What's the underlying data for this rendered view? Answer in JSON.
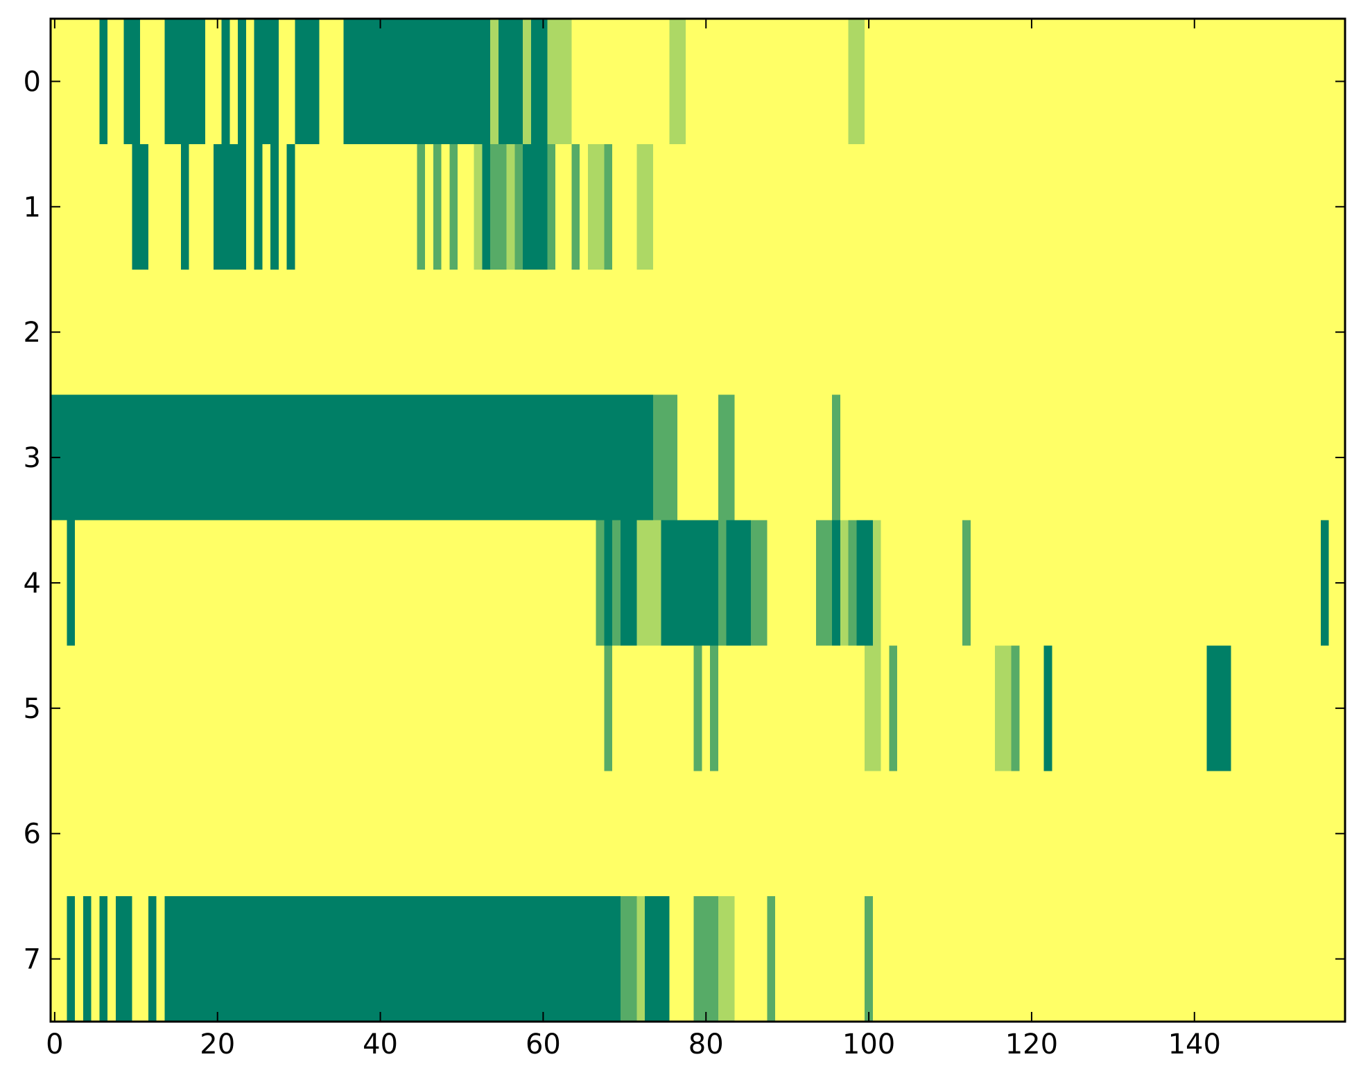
{
  "chart_data": {
    "type": "heatmap",
    "title": "",
    "xlabel": "",
    "ylabel": "",
    "xlim": [
      -0.5,
      158.5
    ],
    "ylim": [
      -0.5,
      7.5
    ],
    "y_inverted": true,
    "n_columns": 159,
    "n_rows": 8,
    "grid": false,
    "legend": "none",
    "x_ticks": [
      0,
      20,
      40,
      60,
      80,
      100,
      120,
      140
    ],
    "x_tick_labels": [
      "0",
      "20",
      "40",
      "60",
      "80",
      "100",
      "120",
      "140"
    ],
    "y_ticks": [
      0,
      1,
      2,
      3,
      4,
      5,
      6,
      7
    ],
    "y_tick_labels": [
      "0",
      "1",
      "2",
      "3",
      "4",
      "5",
      "6",
      "7"
    ],
    "colorscale": {
      "0": "#FFFF66",
      "1": "#ADD865",
      "2": "#57AB67",
      "3": "#007F66"
    },
    "background_level": 0,
    "rows": [
      {
        "row": 0,
        "runs": [
          [
            6,
            6,
            3
          ],
          [
            9,
            10,
            3
          ],
          [
            14,
            18,
            3
          ],
          [
            21,
            21,
            3
          ],
          [
            23,
            23,
            3
          ],
          [
            25,
            27,
            3
          ],
          [
            30,
            32,
            3
          ],
          [
            36,
            53,
            3
          ],
          [
            54,
            54,
            1
          ],
          [
            55,
            57,
            3
          ],
          [
            58,
            58,
            1
          ],
          [
            59,
            60,
            3
          ],
          [
            61,
            63,
            1
          ],
          [
            76,
            77,
            1
          ],
          [
            98,
            99,
            1
          ]
        ]
      },
      {
        "row": 1,
        "runs": [
          [
            10,
            11,
            3
          ],
          [
            16,
            16,
            3
          ],
          [
            20,
            23,
            3
          ],
          [
            25,
            25,
            3
          ],
          [
            27,
            27,
            3
          ],
          [
            29,
            29,
            3
          ],
          [
            45,
            45,
            2
          ],
          [
            47,
            47,
            2
          ],
          [
            49,
            49,
            2
          ],
          [
            52,
            52,
            1
          ],
          [
            53,
            53,
            3
          ],
          [
            54,
            55,
            2
          ],
          [
            56,
            56,
            1
          ],
          [
            57,
            57,
            2
          ],
          [
            58,
            60,
            3
          ],
          [
            61,
            61,
            2
          ],
          [
            64,
            64,
            2
          ],
          [
            66,
            67,
            1
          ],
          [
            68,
            68,
            2
          ],
          [
            72,
            73,
            1
          ]
        ]
      },
      {
        "row": 2,
        "runs": []
      },
      {
        "row": 3,
        "runs": [
          [
            0,
            73,
            3
          ],
          [
            74,
            76,
            2
          ],
          [
            82,
            83,
            2
          ],
          [
            96,
            96,
            2
          ]
        ]
      },
      {
        "row": 4,
        "runs": [
          [
            2,
            2,
            3
          ],
          [
            67,
            67,
            2
          ],
          [
            68,
            68,
            3
          ],
          [
            69,
            69,
            2
          ],
          [
            70,
            71,
            3
          ],
          [
            72,
            74,
            1
          ],
          [
            75,
            81,
            3
          ],
          [
            82,
            82,
            2
          ],
          [
            83,
            85,
            3
          ],
          [
            86,
            87,
            2
          ],
          [
            94,
            95,
            2
          ],
          [
            96,
            96,
            3
          ],
          [
            97,
            97,
            1
          ],
          [
            98,
            98,
            2
          ],
          [
            99,
            100,
            3
          ],
          [
            101,
            101,
            1
          ],
          [
            112,
            112,
            2
          ],
          [
            156,
            156,
            3
          ]
        ]
      },
      {
        "row": 5,
        "runs": [
          [
            68,
            68,
            2
          ],
          [
            79,
            79,
            2
          ],
          [
            81,
            81,
            2
          ],
          [
            100,
            101,
            1
          ],
          [
            103,
            103,
            2
          ],
          [
            116,
            117,
            1
          ],
          [
            118,
            118,
            2
          ],
          [
            122,
            122,
            3
          ],
          [
            142,
            144,
            3
          ]
        ]
      },
      {
        "row": 6,
        "runs": []
      },
      {
        "row": 7,
        "runs": [
          [
            2,
            2,
            3
          ],
          [
            4,
            4,
            3
          ],
          [
            6,
            6,
            3
          ],
          [
            8,
            9,
            3
          ],
          [
            12,
            12,
            3
          ],
          [
            14,
            69,
            3
          ],
          [
            70,
            71,
            2
          ],
          [
            72,
            72,
            1
          ],
          [
            73,
            75,
            3
          ],
          [
            79,
            81,
            2
          ],
          [
            82,
            83,
            1
          ],
          [
            88,
            88,
            2
          ],
          [
            100,
            100,
            2
          ]
        ]
      }
    ]
  }
}
